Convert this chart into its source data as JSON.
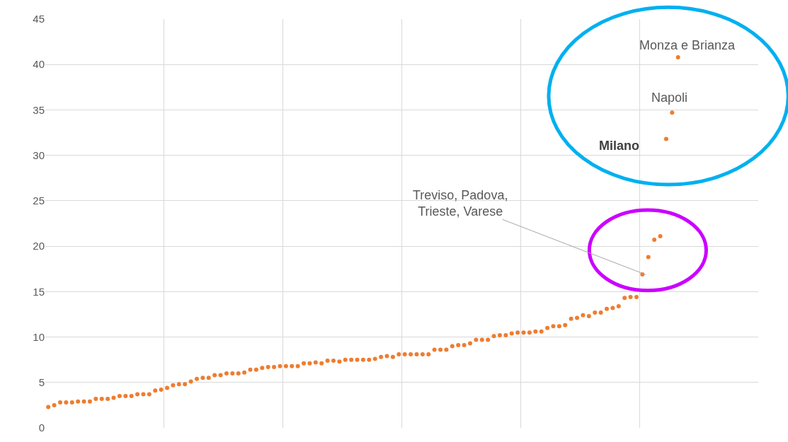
{
  "chart_data": {
    "type": "scatter",
    "categories": [
      null,
      null,
      null,
      null,
      null,
      null,
      null,
      null,
      null,
      null,
      null,
      null,
      null,
      null,
      null,
      null,
      null,
      null,
      null,
      null,
      null,
      null,
      null,
      null,
      null,
      null,
      null,
      null,
      null,
      null,
      null,
      null,
      null,
      null,
      null,
      null,
      null,
      null,
      null,
      null,
      null,
      null,
      null,
      null,
      null,
      null,
      null,
      null,
      null,
      null,
      null,
      null,
      null,
      null,
      null,
      null,
      null,
      null,
      null,
      null,
      null,
      null,
      null,
      null,
      null,
      null,
      null,
      null,
      null,
      null,
      null,
      null,
      null,
      null,
      null,
      null,
      null,
      null,
      null,
      null,
      null,
      null,
      null,
      null,
      null,
      null,
      null,
      null,
      null,
      null,
      null,
      null,
      null,
      null,
      null,
      null,
      null,
      null,
      null,
      null,
      null,
      null,
      null,
      null,
      null,
      null,
      null,
      null,
      null,
      null,
      null,
      null,
      null,
      null,
      null,
      null,
      null,
      null,
      null,
      null
    ],
    "series": [
      {
        "color": "#ed7d31",
        "values": [
          2.3,
          2.5,
          2.8,
          2.8,
          2.8,
          2.9,
          2.9,
          2.9,
          3.2,
          3.2,
          3.2,
          3.3,
          3.5,
          3.5,
          3.5,
          3.7,
          3.7,
          3.7,
          4.1,
          4.2,
          4.4,
          4.7,
          4.8,
          4.8,
          5.1,
          5.4,
          5.5,
          5.5,
          5.8,
          5.8,
          6.0,
          6.0,
          6.0,
          6.1,
          6.4,
          6.4,
          6.6,
          6.7,
          6.7,
          6.8,
          6.8,
          6.8,
          6.8,
          7.1,
          7.1,
          7.2,
          7.1,
          7.4,
          7.4,
          7.3,
          7.5,
          7.5,
          7.5,
          7.5,
          7.5,
          7.6,
          7.8,
          7.9,
          7.8,
          8.1,
          8.1,
          8.1,
          8.1,
          8.1,
          8.1,
          8.6,
          8.6,
          8.6,
          9.0,
          9.1,
          9.1,
          9.3,
          9.7,
          9.7,
          9.7,
          10.1,
          10.2,
          10.2,
          10.4,
          10.5,
          10.5,
          10.5,
          10.6,
          10.6,
          11.0,
          11.2,
          11.2,
          11.3,
          12.0,
          12.1,
          12.4,
          12.3,
          12.7,
          12.7,
          13.1,
          13.2,
          13.4,
          14.3,
          14.4,
          14.4,
          16.9,
          18.8,
          20.7,
          21.1,
          31.8,
          34.7,
          40.8,
          null,
          null,
          null,
          null,
          null,
          null,
          null,
          null,
          null,
          null,
          null,
          null,
          null
        ]
      }
    ],
    "ylim": [
      0,
      45
    ],
    "yticks": [
      0,
      5,
      10,
      15,
      20,
      25,
      30,
      35,
      40,
      45
    ],
    "tick_labels": "y",
    "grid": true,
    "marker": "circle",
    "annotations": [
      "Monza e Brianza",
      "Napoli",
      "Milano",
      "Treviso, Padova,\nTrieste, Varese"
    ]
  }
}
